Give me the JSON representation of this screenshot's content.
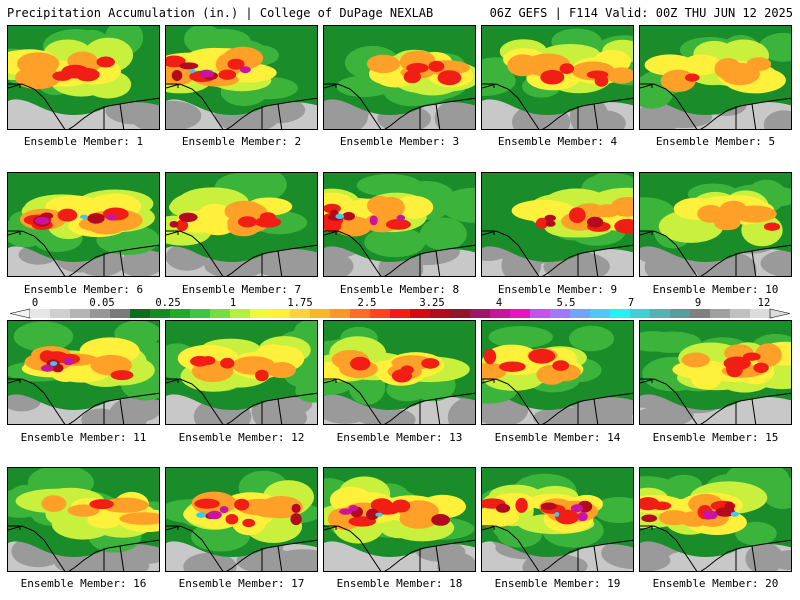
{
  "header": {
    "title": "Precipitation Accumulation (in.) | College of DuPage NEXLAB",
    "run_info": "06Z GEFS | F114 Valid: 00Z THU JUN 12 2025"
  },
  "members": [
    {
      "label": "Ensemble Member: 1",
      "intensity": 3
    },
    {
      "label": "Ensemble Member: 2",
      "intensity": 5
    },
    {
      "label": "Ensemble Member: 3",
      "intensity": 3
    },
    {
      "label": "Ensemble Member: 4",
      "intensity": 3
    },
    {
      "label": "Ensemble Member: 5",
      "intensity": 2
    },
    {
      "label": "Ensemble Member: 6",
      "intensity": 5
    },
    {
      "label": "Ensemble Member: 7",
      "intensity": 4
    },
    {
      "label": "Ensemble Member: 8",
      "intensity": 5
    },
    {
      "label": "Ensemble Member: 9",
      "intensity": 4
    },
    {
      "label": "Ensemble Member: 10",
      "intensity": 2
    },
    {
      "label": "Ensemble Member: 11",
      "intensity": 5
    },
    {
      "label": "Ensemble Member: 12",
      "intensity": 3
    },
    {
      "label": "Ensemble Member: 13",
      "intensity": 3
    },
    {
      "label": "Ensemble Member: 14",
      "intensity": 3
    },
    {
      "label": "Ensemble Member: 15",
      "intensity": 3
    },
    {
      "label": "Ensemble Member: 16",
      "intensity": 2
    },
    {
      "label": "Ensemble Member: 17",
      "intensity": 5
    },
    {
      "label": "Ensemble Member: 18",
      "intensity": 5
    },
    {
      "label": "Ensemble Member: 19",
      "intensity": 5
    },
    {
      "label": "Ensemble Member: 20",
      "intensity": 5
    }
  ],
  "legend": {
    "labels": [
      "0",
      "0.05",
      "0.25",
      "1",
      "1.75",
      "2.5",
      "3.25",
      "4",
      "5.5",
      "7",
      "9",
      "12"
    ],
    "colors": [
      "#e6e6e6",
      "#cfcfcf",
      "#b4b4b4",
      "#969696",
      "#7a7a7a",
      "#0a6e1e",
      "#128c28",
      "#1eaa2d",
      "#3cc83c",
      "#78dc3c",
      "#b4f03c",
      "#f0fa3c",
      "#fff03c",
      "#ffd23c",
      "#ffb428",
      "#ff9628",
      "#ff6e1e",
      "#ff4614",
      "#f01e14",
      "#d20a14",
      "#b40a1e",
      "#961428",
      "#a01464",
      "#c81496",
      "#e614c8",
      "#c850f0",
      "#a078ff",
      "#78a0ff",
      "#50c8ff",
      "#28f0f0",
      "#3cd2d2",
      "#50b4b4",
      "#5a9b9b",
      "#808080",
      "#a0a0a0",
      "#c0c0c0",
      "#dcdcdc"
    ]
  }
}
